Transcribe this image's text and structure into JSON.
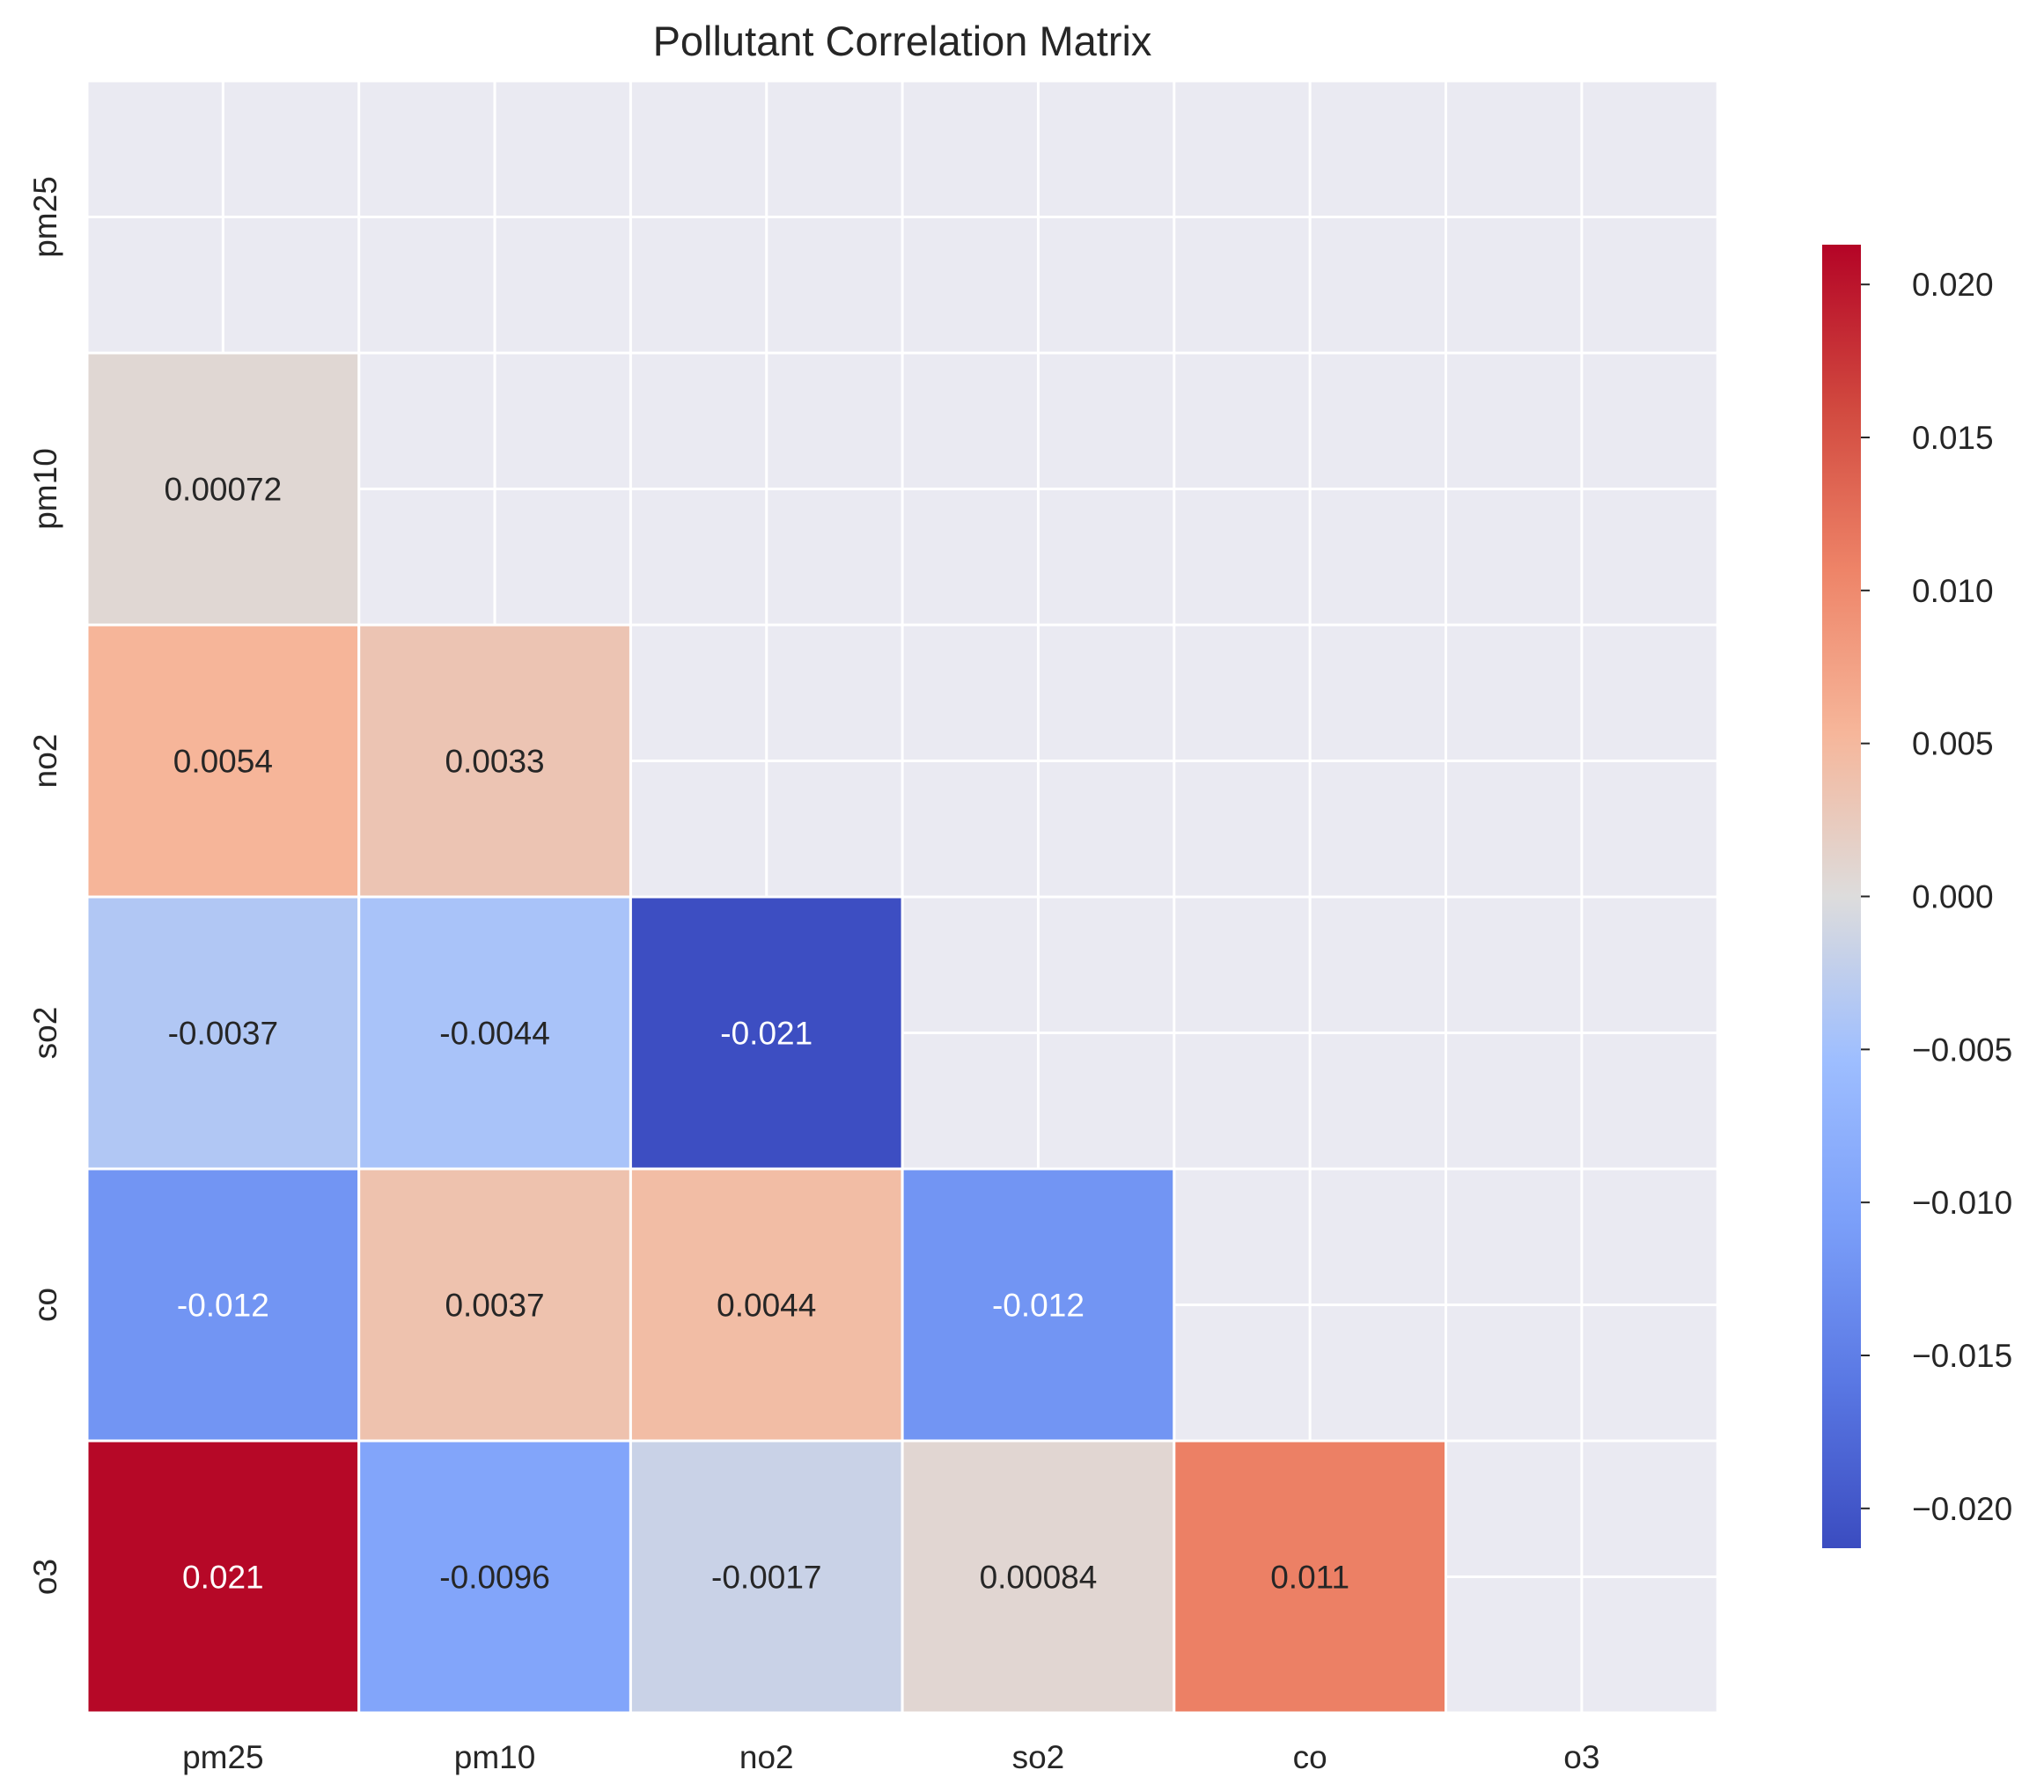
{
  "chart_data": {
    "type": "heatmap",
    "title": "Pollutant Correlation Matrix",
    "xlabel": "",
    "ylabel": "",
    "variables": [
      "pm25",
      "pm10",
      "no2",
      "so2",
      "co",
      "o3"
    ],
    "mask": "upper triangle including diagonal",
    "cells": [
      {
        "row": "pm10",
        "col": "pm25",
        "value": 0.00072,
        "label": "0.00072"
      },
      {
        "row": "no2",
        "col": "pm25",
        "value": 0.0054,
        "label": "0.0054"
      },
      {
        "row": "no2",
        "col": "pm10",
        "value": 0.0033,
        "label": "0.0033"
      },
      {
        "row": "so2",
        "col": "pm25",
        "value": -0.0037,
        "label": "-0.0037"
      },
      {
        "row": "so2",
        "col": "pm10",
        "value": -0.0044,
        "label": "-0.0044"
      },
      {
        "row": "so2",
        "col": "no2",
        "value": -0.021,
        "label": "-0.021"
      },
      {
        "row": "co",
        "col": "pm25",
        "value": -0.012,
        "label": "-0.012"
      },
      {
        "row": "co",
        "col": "pm10",
        "value": 0.0037,
        "label": "0.0037"
      },
      {
        "row": "co",
        "col": "no2",
        "value": 0.0044,
        "label": "0.0044"
      },
      {
        "row": "co",
        "col": "so2",
        "value": -0.012,
        "label": "-0.012"
      },
      {
        "row": "o3",
        "col": "pm25",
        "value": 0.021,
        "label": "0.021"
      },
      {
        "row": "o3",
        "col": "pm10",
        "value": -0.0096,
        "label": "-0.0096"
      },
      {
        "row": "o3",
        "col": "no2",
        "value": -0.0017,
        "label": "-0.0017"
      },
      {
        "row": "o3",
        "col": "so2",
        "value": 0.00084,
        "label": "0.00084"
      },
      {
        "row": "o3",
        "col": "co",
        "value": 0.011,
        "label": "0.011"
      }
    ],
    "colormap": "coolwarm",
    "vmin": -0.0213,
    "vmax": 0.0213,
    "colorbar": {
      "ticks": [
        0.02,
        0.015,
        0.01,
        0.005,
        0.0,
        -0.005,
        -0.01,
        -0.015,
        -0.02
      ],
      "tick_labels": [
        "0.020",
        "0.015",
        "0.010",
        "0.005",
        "0.000",
        "−0.005",
        "−0.010",
        "−0.015",
        "−0.020"
      ]
    },
    "grid": true,
    "colors": {
      "background": "#eaeaf2",
      "grid": "#ffffff",
      "text_dark": "#262626",
      "text_light": "#ffffff"
    }
  }
}
